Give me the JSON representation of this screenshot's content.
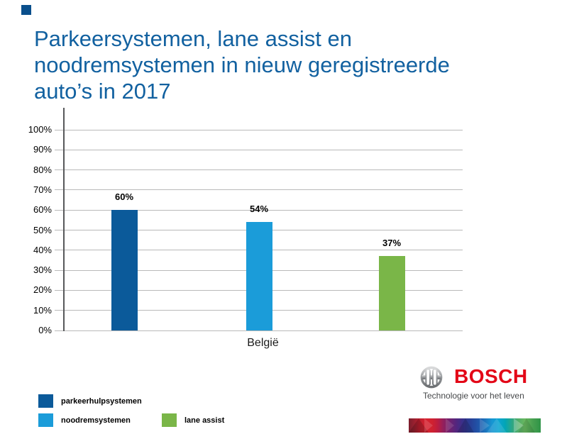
{
  "slide": {
    "title_lines": [
      "Parkeersystemen, lane assist en",
      "noodremsystemen in nieuw geregistreerde",
      "auto’s in 2017"
    ],
    "title_color": "#1261a0",
    "corner_square_color": "#0a4f8c"
  },
  "chart_data": {
    "type": "bar",
    "title": "Parkeersystemen, lane assist en noodremsystemen in nieuw geregistreerde auto’s in 2017",
    "categories": [
      "België"
    ],
    "series": [
      {
        "name": "parkeerhulpsystemen",
        "value": 60,
        "label": "60%",
        "color": "#0b5a9a"
      },
      {
        "name": "noodremsystemen",
        "value": 54,
        "label": "54%",
        "color": "#1b9cd9"
      },
      {
        "name": "lane assist",
        "value": 37,
        "label": "37%",
        "color": "#7ab648"
      }
    ],
    "ylim": [
      0,
      100
    ],
    "ytick_step": 10,
    "ytick_labels": [
      "0%",
      "10%",
      "20%",
      "30%",
      "40%",
      "50%",
      "60%",
      "70%",
      "80%",
      "90%",
      "100%"
    ],
    "grid": true,
    "grid_color": "#b9b9b9",
    "axis_color": "#58595b",
    "legend_position": "bottom-left"
  },
  "legend": {
    "items": [
      {
        "label": "parkeerhulpsystemen",
        "color": "#0b5a9a"
      },
      {
        "label": "noodremsystemen",
        "color": "#1b9cd9"
      },
      {
        "label": "lane assist",
        "color": "#7ab648"
      }
    ]
  },
  "footer": {
    "brand": "BOSCH",
    "brand_color": "#e30617",
    "tagline": "Technologie voor het leven",
    "supergraphic_colors": [
      "#7b1e2c",
      "#d62230",
      "#71216f",
      "#274097",
      "#0da4d2",
      "#2f9447"
    ]
  }
}
